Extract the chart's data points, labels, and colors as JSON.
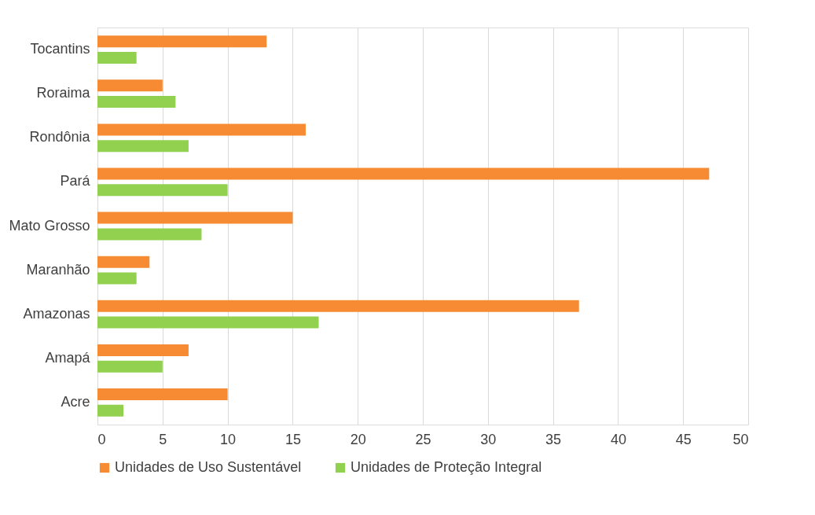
{
  "chart_data": {
    "type": "bar",
    "orientation": "horizontal",
    "categories": [
      "Tocantins",
      "Roraima",
      "Rondônia",
      "Pará",
      "Mato Grosso",
      "Maranhão",
      "Amazonas",
      "Amapá",
      "Acre"
    ],
    "series": [
      {
        "name": "Unidades de Uso Sustentável",
        "color": "#f68b33",
        "values": [
          13,
          5,
          16,
          47,
          15,
          4,
          37,
          7,
          10
        ]
      },
      {
        "name": "Unidades de Proteção Integral",
        "color": "#92d050",
        "values": [
          3,
          6,
          7,
          10,
          8,
          3,
          17,
          5,
          2
        ]
      }
    ],
    "xlim": [
      0,
      50
    ],
    "xticks": [
      0,
      5,
      10,
      15,
      20,
      25,
      30,
      35,
      40,
      45,
      50
    ],
    "grid": "x",
    "legend": "bottom"
  }
}
